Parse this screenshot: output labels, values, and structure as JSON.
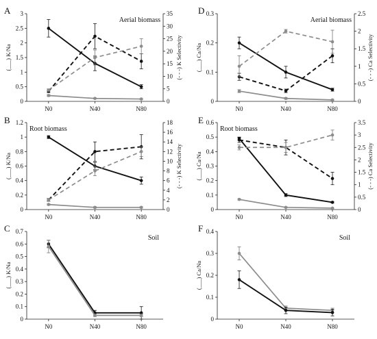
{
  "colors": {
    "black": "#111111",
    "gray": "#8c8c8c",
    "dark_gray": "#777777"
  },
  "chart_data": [
    {
      "type": "line",
      "panel_label": "A",
      "title": "Aerial biomass",
      "categories": [
        "N0",
        "N40",
        "N80"
      ],
      "ylabel": "(___) K/Na",
      "y2label": "(- - -) K Selectivity",
      "ylim": [
        0,
        3
      ],
      "yticks": [
        "0",
        "0.5",
        "1",
        "1.5",
        "2",
        "2.5",
        "3"
      ],
      "y2lim": [
        0,
        35
      ],
      "y2ticks": [
        "0",
        "5",
        "10",
        "15",
        "20",
        "25",
        "30",
        "35"
      ],
      "series": [
        {
          "axis": "left",
          "style": "solid",
          "color": "black",
          "values": [
            2.5,
            1.3,
            0.5
          ],
          "errors": [
            0.3,
            0.25,
            0.07
          ]
        },
        {
          "axis": "left",
          "style": "solid",
          "color": "gray",
          "values": [
            0.2,
            0.1,
            0.08
          ],
          "errors": [
            0.03,
            0.02,
            0.02
          ]
        },
        {
          "axis": "right",
          "style": "dashed",
          "color": "black",
          "values": [
            4,
            26,
            16
          ],
          "errors": [
            0.5,
            5,
            3
          ]
        },
        {
          "axis": "right",
          "style": "dashed",
          "color": "gray",
          "values": [
            4.5,
            17.5,
            22
          ],
          "errors": [
            0.5,
            3,
            3
          ]
        }
      ]
    },
    {
      "type": "line",
      "panel_label": "B",
      "title": "Root biomass",
      "categories": [
        "N0",
        "N40",
        "N80"
      ],
      "ylabel": "(___) K/Na",
      "y2label": "(- - -) K Selectivity",
      "ylim": [
        0,
        1.2
      ],
      "yticks": [
        "0",
        "0.2",
        "0.4",
        "0.6",
        "0.8",
        "1",
        "1.2"
      ],
      "y2lim": [
        0,
        18
      ],
      "y2ticks": [
        "0",
        "2",
        "4",
        "6",
        "8",
        "10",
        "12",
        "14",
        "16",
        "18"
      ],
      "series": [
        {
          "axis": "left",
          "style": "solid",
          "color": "black",
          "values": [
            1.0,
            0.6,
            0.4
          ],
          "errors": [
            0.02,
            0.05,
            0.05
          ]
        },
        {
          "axis": "left",
          "style": "solid",
          "color": "gray",
          "values": [
            0.07,
            0.03,
            0.03
          ],
          "errors": [
            0.01,
            0.01,
            0.01
          ]
        },
        {
          "axis": "right",
          "style": "dashed",
          "color": "black",
          "values": [
            2,
            12,
            13
          ],
          "errors": [
            0.3,
            2,
            2.5
          ]
        },
        {
          "axis": "right",
          "style": "dashed",
          "color": "gray",
          "values": [
            2,
            8,
            12
          ],
          "errors": [
            0.3,
            1,
            1
          ]
        }
      ]
    },
    {
      "type": "line",
      "panel_label": "C",
      "title": "Soil",
      "categories": [
        "N0",
        "N40",
        "N80"
      ],
      "ylabel": "(___) K/Na",
      "ylim": [
        0,
        0.7
      ],
      "yticks": [
        "0",
        "0.1",
        "0.2",
        "0.3",
        "0.4",
        "0.5",
        "0.6",
        "0.7"
      ],
      "series": [
        {
          "axis": "left",
          "style": "solid",
          "color": "black",
          "values": [
            0.6,
            0.05,
            0.05
          ],
          "errors": [
            0.03,
            0.02,
            0.05
          ]
        },
        {
          "axis": "left",
          "style": "solid",
          "color": "gray",
          "values": [
            0.58,
            0.03,
            0.03
          ],
          "errors": [
            0.05,
            0.01,
            0.01
          ]
        }
      ]
    },
    {
      "type": "line",
      "panel_label": "D",
      "title": "Aerial biomass",
      "categories": [
        "N0",
        "N40",
        "N80"
      ],
      "ylabel": "(___) Ca/Na",
      "y2label": "(- - -) Ca Selectivity",
      "ylim": [
        0,
        0.3
      ],
      "yticks": [
        "0",
        "0.1",
        "0.2",
        "0.3"
      ],
      "y2lim": [
        0,
        2.5
      ],
      "y2ticks": [
        "0",
        "0.5",
        "1",
        "1.5",
        "2",
        "2.5"
      ],
      "series": [
        {
          "axis": "left",
          "style": "solid",
          "color": "black",
          "values": [
            0.2,
            0.1,
            0.04
          ],
          "errors": [
            0.02,
            0.02,
            0.005
          ]
        },
        {
          "axis": "left",
          "style": "solid",
          "color": "gray",
          "values": [
            0.035,
            0.01,
            0.005
          ],
          "errors": [
            0.005,
            0.003,
            0.002
          ]
        },
        {
          "axis": "right",
          "style": "dashed",
          "color": "black",
          "values": [
            0.7,
            0.3,
            1.3
          ],
          "errors": [
            0.1,
            0.05,
            0.2
          ]
        },
        {
          "axis": "right",
          "style": "dashed",
          "color": "gray",
          "values": [
            1.0,
            2.0,
            1.7
          ],
          "errors": [
            0.3,
            0.05,
            0.33
          ]
        }
      ]
    },
    {
      "type": "line",
      "panel_label": "E",
      "title": "Root biomass",
      "categories": [
        "N0",
        "N40",
        "N80"
      ],
      "ylabel": "(___) Ca/Na",
      "y2label": "(- - -) Ca Selectivity",
      "ylim": [
        0,
        0.6
      ],
      "yticks": [
        "0",
        "0.1",
        "0.2",
        "0.3",
        "0.4",
        "0.5",
        "0.6"
      ],
      "y2lim": [
        0,
        3.5
      ],
      "y2ticks": [
        "0",
        "0.5",
        "1",
        "1.5",
        "2",
        "2.5",
        "3",
        "3.5"
      ],
      "series": [
        {
          "axis": "left",
          "style": "solid",
          "color": "black",
          "values": [
            0.49,
            0.1,
            0.05
          ],
          "errors": [
            0.01,
            0.01,
            0.005
          ]
        },
        {
          "axis": "left",
          "style": "solid",
          "color": "gray",
          "values": [
            0.07,
            0.015,
            0.01
          ],
          "errors": [
            0.005,
            0.003,
            0.002
          ]
        },
        {
          "axis": "right",
          "style": "dashed",
          "color": "black",
          "values": [
            2.8,
            2.5,
            1.25
          ],
          "errors": [
            0.1,
            0.3,
            0.25
          ]
        },
        {
          "axis": "right",
          "style": "dashed",
          "color": "gray",
          "values": [
            2.5,
            2.5,
            3.0
          ],
          "errors": [
            0.1,
            0.2,
            0.2
          ]
        }
      ]
    },
    {
      "type": "line",
      "panel_label": "F",
      "title": "Soil",
      "categories": [
        "N0",
        "N40",
        "N80"
      ],
      "ylabel": "(___) Ca/Na",
      "ylim": [
        0,
        0.4
      ],
      "yticks": [
        "0",
        "0.1",
        "0.2",
        "0.3",
        "0.4"
      ],
      "series": [
        {
          "axis": "left",
          "style": "solid",
          "color": "gray",
          "values": [
            0.3,
            0.05,
            0.04
          ],
          "errors": [
            0.03,
            0.01,
            0.01
          ]
        },
        {
          "axis": "left",
          "style": "solid",
          "color": "black",
          "values": [
            0.18,
            0.04,
            0.03
          ],
          "errors": [
            0.04,
            0.015,
            0.015
          ]
        }
      ]
    }
  ]
}
